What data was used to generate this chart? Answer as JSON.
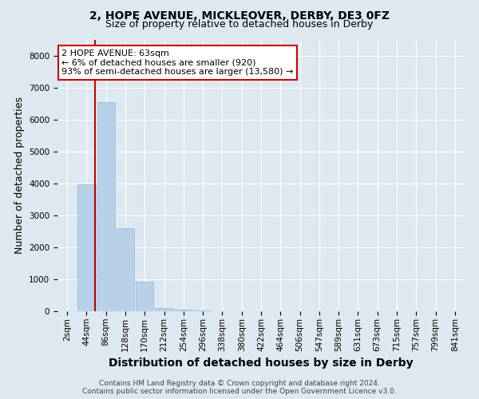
{
  "title": "2, HOPE AVENUE, MICKLEOVER, DERBY, DE3 0FZ",
  "subtitle": "Size of property relative to detached houses in Derby",
  "xlabel": "Distribution of detached houses by size in Derby",
  "ylabel": "Number of detached properties",
  "categories": [
    "2sqm",
    "44sqm",
    "86sqm",
    "128sqm",
    "170sqm",
    "212sqm",
    "254sqm",
    "296sqm",
    "338sqm",
    "380sqm",
    "422sqm",
    "464sqm",
    "506sqm",
    "547sqm",
    "589sqm",
    "631sqm",
    "673sqm",
    "715sqm",
    "757sqm",
    "799sqm",
    "841sqm"
  ],
  "values": [
    0,
    3980,
    6550,
    2600,
    920,
    100,
    50,
    20,
    0,
    0,
    0,
    0,
    0,
    0,
    0,
    0,
    0,
    0,
    0,
    0,
    0
  ],
  "bar_color": "#b8d0e8",
  "bar_edge_color": "#90b8d8",
  "vline_x_index": 1,
  "vline_color": "#cc0000",
  "annotation_text": "2 HOPE AVENUE: 63sqm\n← 6% of detached houses are smaller (920)\n93% of semi-detached houses are larger (13,580) →",
  "annotation_box_color": "#ffffff",
  "annotation_box_edge_color": "#cc0000",
  "ylim": [
    0,
    8500
  ],
  "yticks": [
    0,
    1000,
    2000,
    3000,
    4000,
    5000,
    6000,
    7000,
    8000
  ],
  "bg_color": "#dde8f0",
  "plot_bg_color": "#dde8f0",
  "footer_line1": "Contains HM Land Registry data © Crown copyright and database right 2024.",
  "footer_line2": "Contains public sector information licensed under the Open Government Licence v3.0.",
  "title_fontsize": 10,
  "subtitle_fontsize": 9,
  "axis_label_fontsize": 9,
  "tick_fontsize": 7.5,
  "footer_fontsize": 6.5
}
